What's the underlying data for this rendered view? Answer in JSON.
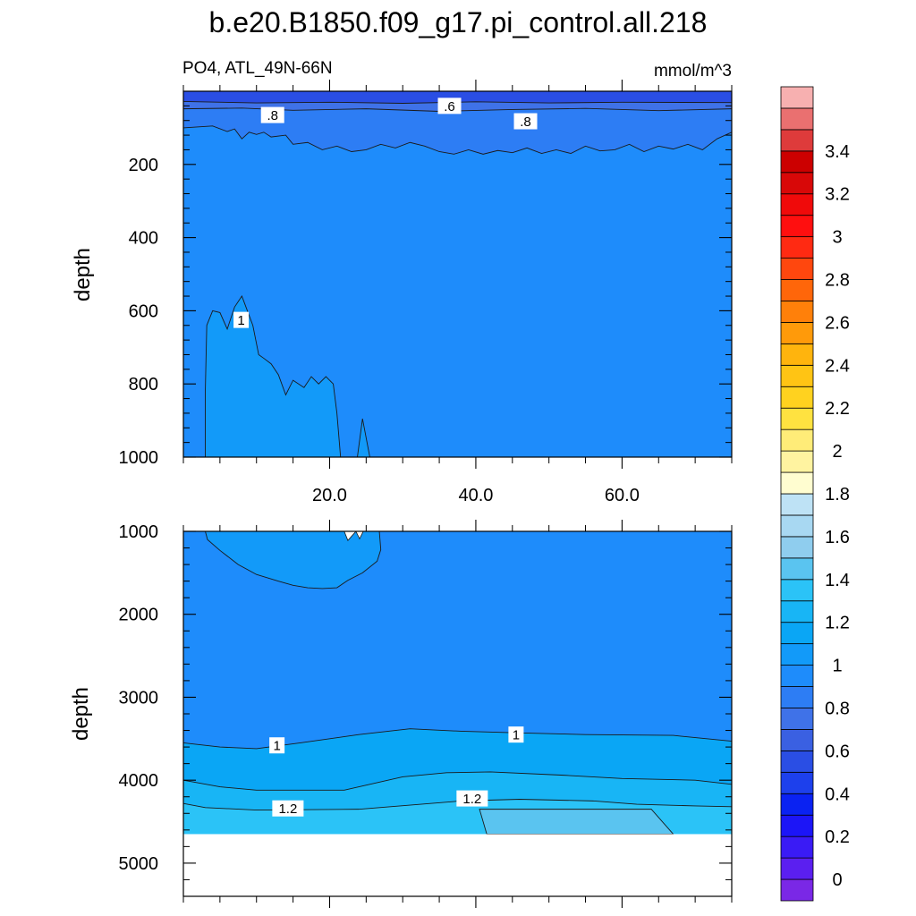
{
  "title": "b.e20.B1850.f09_g17.pi_control.all.218",
  "chart_data": [
    {
      "type": "heatmap",
      "panel": "upper",
      "left_label": "PO4, ATL_49N-66N",
      "right_label": "mmol/m^3",
      "ylabel": "depth",
      "xlim": [
        0,
        75
      ],
      "ylim": [
        0,
        1000
      ],
      "y_inverted": true,
      "x_ticks": [
        20,
        40,
        60
      ],
      "x_tick_labels": [
        "20.0",
        "40.0",
        "60.0"
      ],
      "y_ticks": [
        200,
        400,
        600,
        800,
        1000
      ],
      "y_tick_labels": [
        "200",
        "400",
        "600",
        "800",
        "1000"
      ],
      "fill_base_value": 0.9,
      "contour_bands": [
        {
          "value": 0.5,
          "top": [
            [
              0,
              0
            ],
            [
              75,
              0
            ]
          ],
          "bottom": [
            [
              0,
              28
            ],
            [
              10,
              32
            ],
            [
              20,
              30
            ],
            [
              30,
              33
            ],
            [
              40,
              29
            ],
            [
              50,
              32
            ],
            [
              60,
              30
            ],
            [
              75,
              31
            ]
          ]
        },
        {
          "value": 0.7,
          "top": [
            [
              0,
              28
            ],
            [
              10,
              32
            ],
            [
              20,
              30
            ],
            [
              30,
              33
            ],
            [
              40,
              29
            ],
            [
              50,
              32
            ],
            [
              60,
              30
            ],
            [
              75,
              31
            ]
          ],
          "bottom": [
            [
              0,
              48
            ],
            [
              8,
              46
            ],
            [
              15,
              52
            ],
            [
              25,
              48
            ],
            [
              35,
              55
            ],
            [
              45,
              50
            ],
            [
              55,
              47
            ],
            [
              65,
              53
            ],
            [
              75,
              48
            ]
          ]
        },
        {
          "value": 0.8,
          "top": [
            [
              0,
              48
            ],
            [
              8,
              46
            ],
            [
              15,
              52
            ],
            [
              25,
              48
            ],
            [
              35,
              55
            ],
            [
              45,
              50
            ],
            [
              55,
              47
            ],
            [
              65,
              53
            ],
            [
              75,
              48
            ]
          ],
          "bottom": [
            [
              0,
              100
            ],
            [
              4,
              95
            ],
            [
              6,
              110
            ],
            [
              7,
              103
            ],
            [
              8,
              130
            ],
            [
              9,
              112
            ],
            [
              10,
              118
            ],
            [
              11,
              112
            ],
            [
              12,
              125
            ],
            [
              14,
              120
            ],
            [
              15,
              145
            ],
            [
              17,
              140
            ],
            [
              19,
              160
            ],
            [
              21,
              150
            ],
            [
              23,
              165
            ],
            [
              25,
              160
            ],
            [
              27,
              145
            ],
            [
              29,
              155
            ],
            [
              31,
              140
            ],
            [
              33,
              150
            ],
            [
              35,
              165
            ],
            [
              37,
              172
            ],
            [
              39,
              160
            ],
            [
              41,
              172
            ],
            [
              43,
              162
            ],
            [
              45,
              168
            ],
            [
              47,
              155
            ],
            [
              49,
              170
            ],
            [
              51,
              160
            ],
            [
              53,
              170
            ],
            [
              55,
              150
            ],
            [
              57,
              163
            ],
            [
              59,
              160
            ],
            [
              61,
              145
            ],
            [
              63,
              165
            ],
            [
              65,
              150
            ],
            [
              67,
              158
            ],
            [
              69,
              145
            ],
            [
              71,
              160
            ],
            [
              73,
              130
            ],
            [
              75,
              112
            ]
          ]
        }
      ],
      "contour_regions": [
        {
          "value": 1.0,
          "outline": [
            [
              3,
              1000
            ],
            [
              3,
              820
            ],
            [
              3.2,
              640
            ],
            [
              4,
              600
            ],
            [
              5,
              605
            ],
            [
              6,
              650
            ],
            [
              6.5,
              620
            ],
            [
              7,
              590
            ],
            [
              8,
              560
            ],
            [
              9.5,
              640
            ],
            [
              10.3,
              720
            ],
            [
              11,
              730
            ],
            [
              12,
              745
            ],
            [
              13,
              775
            ],
            [
              14,
              830
            ],
            [
              15,
              790
            ],
            [
              16.5,
              810
            ],
            [
              17.5,
              780
            ],
            [
              18.5,
              800
            ],
            [
              19.5,
              780
            ],
            [
              20.5,
              800
            ],
            [
              21,
              880
            ],
            [
              21.5,
              1000
            ]
          ]
        },
        {
          "value": 1.0,
          "outline": [
            [
              23.8,
              1000
            ],
            [
              24.5,
              895
            ],
            [
              25.5,
              1000
            ]
          ]
        }
      ],
      "contour_labels": [
        {
          "text": ".6",
          "x": 36.4,
          "y": 40
        },
        {
          "text": ".8",
          "x": 12.2,
          "y": 65
        },
        {
          "text": ".8",
          "x": 46.8,
          "y": 82
        },
        {
          "text": "1",
          "x": 7.9,
          "y": 625
        }
      ]
    },
    {
      "type": "heatmap",
      "panel": "lower",
      "ylabel": "depth",
      "xlim": [
        0,
        75
      ],
      "ylim": [
        1000,
        5400
      ],
      "y_inverted": true,
      "x_ticks": [
        20,
        40,
        60
      ],
      "y_ticks": [
        1000,
        2000,
        3000,
        4000,
        5000
      ],
      "y_tick_labels": [
        "1000",
        "2000",
        "3000",
        "4000",
        "5000"
      ],
      "land_below_depth": 4650,
      "fill_base_value": 0.9,
      "contour_bands": [
        {
          "value": 1.1,
          "top": [
            [
              0,
              3550
            ],
            [
              5,
              3600
            ],
            [
              10,
              3620
            ],
            [
              16,
              3550
            ],
            [
              24,
              3450
            ],
            [
              31,
              3380
            ],
            [
              38,
              3410
            ],
            [
              46,
              3430
            ],
            [
              55,
              3450
            ],
            [
              67,
              3460
            ],
            [
              75,
              3530
            ]
          ],
          "bottom": [
            [
              0,
              4000
            ],
            [
              5,
              4080
            ],
            [
              10,
              4120
            ],
            [
              22,
              4120
            ],
            [
              30,
              3960
            ],
            [
              36,
              3910
            ],
            [
              42,
              3900
            ],
            [
              52,
              3940
            ],
            [
              60,
              3980
            ],
            [
              70,
              4000
            ],
            [
              75,
              4050
            ]
          ]
        },
        {
          "value": 1.2,
          "top": [
            [
              0,
              4000
            ],
            [
              5,
              4080
            ],
            [
              10,
              4120
            ],
            [
              22,
              4120
            ],
            [
              30,
              3960
            ],
            [
              36,
              3910
            ],
            [
              42,
              3900
            ],
            [
              52,
              3940
            ],
            [
              60,
              3980
            ],
            [
              70,
              4000
            ],
            [
              75,
              4050
            ]
          ],
          "bottom": [
            [
              0,
              4280
            ],
            [
              3,
              4330
            ],
            [
              10,
              4360
            ],
            [
              24,
              4350
            ],
            [
              38,
              4250
            ],
            [
              46,
              4230
            ],
            [
              56,
              4250
            ],
            [
              62,
              4290
            ],
            [
              70,
              4310
            ],
            [
              75,
              4320
            ]
          ]
        },
        {
          "value": 1.3,
          "top": [
            [
              0,
              4280
            ],
            [
              3,
              4330
            ],
            [
              10,
              4360
            ],
            [
              24,
              4350
            ],
            [
              38,
              4250
            ],
            [
              46,
              4230
            ],
            [
              56,
              4250
            ],
            [
              62,
              4290
            ],
            [
              70,
              4310
            ],
            [
              75,
              4320
            ]
          ],
          "bottom": [
            [
              0,
              4650
            ],
            [
              75,
              4650
            ]
          ]
        }
      ],
      "contour_regions": [
        {
          "value": 1.0,
          "outline": [
            [
              3,
              1000
            ],
            [
              3.3,
              1100
            ],
            [
              5,
              1230
            ],
            [
              7.5,
              1400
            ],
            [
              10,
              1520
            ],
            [
              13,
              1600
            ],
            [
              15,
              1650
            ],
            [
              17,
              1680
            ],
            [
              19,
              1690
            ],
            [
              21,
              1680
            ],
            [
              22.5,
              1590
            ],
            [
              24.5,
              1500
            ],
            [
              26.5,
              1360
            ],
            [
              27,
              1220
            ],
            [
              26.8,
              1000
            ]
          ]
        },
        {
          "value": 1.4,
          "outline": [
            [
              41.5,
              4650
            ],
            [
              40.5,
              4350
            ],
            [
              64,
              4350
            ],
            [
              67,
              4650
            ]
          ]
        }
      ],
      "white_overrides": [
        {
          "outline": [
            [
              22,
              1000
            ],
            [
              22.5,
              1110
            ],
            [
              23.6,
              1000
            ]
          ]
        },
        {
          "outline": [
            [
              23.6,
              1000
            ],
            [
              24.1,
              1090
            ],
            [
              24.6,
              1000
            ]
          ]
        }
      ],
      "contour_labels": [
        {
          "text": "1",
          "x": 12.8,
          "y": 3580
        },
        {
          "text": "1",
          "x": 45.5,
          "y": 3450
        },
        {
          "text": "1.2",
          "x": 14.3,
          "y": 4340
        },
        {
          "text": "1.2",
          "x": 39.5,
          "y": 4220
        }
      ]
    }
  ],
  "colorbar": {
    "levels": [
      -0.1,
      0,
      0.1,
      0.2,
      0.3,
      0.4,
      0.5,
      0.6,
      0.7,
      0.8,
      0.9,
      1.0,
      1.1,
      1.2,
      1.3,
      1.4,
      1.5,
      1.6,
      1.7,
      1.8,
      1.9,
      2.0,
      2.1,
      2.2,
      2.3,
      2.4,
      2.5,
      2.6,
      2.7,
      2.8,
      2.9,
      3.0,
      3.1,
      3.2,
      3.3,
      3.4,
      3.5,
      3.6
    ],
    "colors": [
      "#7a28e6",
      "#5b1ff0",
      "#3a1bf5",
      "#1c15f7",
      "#0a22f2",
      "#1d40ec",
      "#2a4ee4",
      "#3a60e2",
      "#3f72e8",
      "#2d7df4",
      "#1e8cfb",
      "#129af9",
      "#0aa6f5",
      "#18b5f5",
      "#2bc3f7",
      "#5ac4f0",
      "#8fcdee",
      "#a8d8f2",
      "#bee2f5",
      "#fffdd0",
      "#fff3a0",
      "#ffec78",
      "#ffe240",
      "#ffd21f",
      "#ffc414",
      "#ffb40d",
      "#ff9a0a",
      "#ff800a",
      "#ff660a",
      "#ff470e",
      "#ff2a12",
      "#ff0f0f",
      "#f00a0a",
      "#d80808",
      "#cc0000",
      "#de3b3b",
      "#ea7070",
      "#f7b0b0"
    ],
    "labels": [
      {
        "text": "0",
        "value": 0
      },
      {
        "text": "0.2",
        "value": 0.2
      },
      {
        "text": "0.4",
        "value": 0.4
      },
      {
        "text": "0.6",
        "value": 0.6
      },
      {
        "text": "0.8",
        "value": 0.8
      },
      {
        "text": "1",
        "value": 1.0
      },
      {
        "text": "1.2",
        "value": 1.2
      },
      {
        "text": "1.4",
        "value": 1.4
      },
      {
        "text": "1.6",
        "value": 1.6
      },
      {
        "text": "1.8",
        "value": 1.8
      },
      {
        "text": "2",
        "value": 2.0
      },
      {
        "text": "2.2",
        "value": 2.2
      },
      {
        "text": "2.4",
        "value": 2.4
      },
      {
        "text": "2.6",
        "value": 2.6
      },
      {
        "text": "2.8",
        "value": 2.8
      },
      {
        "text": "3",
        "value": 3.0
      },
      {
        "text": "3.2",
        "value": 3.2
      },
      {
        "text": "3.4",
        "value": 3.4
      }
    ]
  }
}
